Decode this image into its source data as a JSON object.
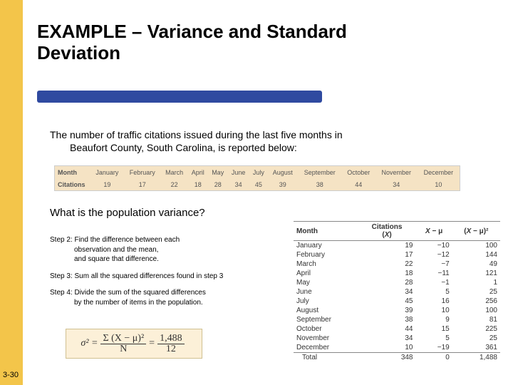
{
  "colors": {
    "gold": "#f3c54a",
    "blue": "#2f4aa0",
    "tan": "#f5e3c4",
    "formula_bg": "#fcf0d8"
  },
  "title_line1": "EXAMPLE – Variance and Standard",
  "title_line2": "Deviation",
  "intro_line1": "The number of traffic citations issued during the last five months in",
  "intro_line2": "Beaufort County, South Carolina, is reported below:",
  "months_bar": {
    "row1_label": "Month",
    "row2_label": "Citations",
    "months": [
      "January",
      "February",
      "March",
      "April",
      "May",
      "June",
      "July",
      "August",
      "September",
      "October",
      "November",
      "December"
    ],
    "values": [
      "19",
      "17",
      "22",
      "18",
      "28",
      "34",
      "45",
      "39",
      "38",
      "44",
      "34",
      "10"
    ]
  },
  "question": "What is the population variance?",
  "steps": {
    "s2a": "Step 2: Find the difference between each",
    "s2b": "observation and the mean,",
    "s2c": "and square that difference.",
    "s3": "Step 3: Sum all the squared differences found in step 3",
    "s4a": "Step 4: Divide the sum of the squared differences",
    "s4b": "by the number of items in the population."
  },
  "formula": {
    "lhs": "σ² =",
    "num1": "Σ (X − μ)²",
    "den1": "N",
    "eq": "=",
    "num2": "1,488",
    "den2": "12"
  },
  "calc_table": {
    "headers": [
      "Month",
      "Citations\n(X)",
      "X − μ",
      "(X − μ)²"
    ],
    "rows": [
      [
        "January",
        "19",
        "−10",
        "100"
      ],
      [
        "February",
        "17",
        "−12",
        "144"
      ],
      [
        "March",
        "22",
        "−7",
        "49"
      ],
      [
        "April",
        "18",
        "−11",
        "121"
      ],
      [
        "May",
        "28",
        "−1",
        "1"
      ],
      [
        "June",
        "34",
        "5",
        "25"
      ],
      [
        "July",
        "45",
        "16",
        "256"
      ],
      [
        "August",
        "39",
        "10",
        "100"
      ],
      [
        "September",
        "38",
        "9",
        "81"
      ],
      [
        "October",
        "44",
        "15",
        "225"
      ],
      [
        "November",
        "34",
        "5",
        "25"
      ],
      [
        "December",
        "10",
        "−19",
        "361"
      ]
    ],
    "total": [
      "Total",
      "348",
      "0",
      "1,488"
    ]
  },
  "page_number": "3-30"
}
